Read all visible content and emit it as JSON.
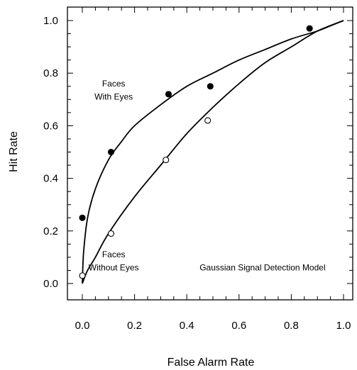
{
  "chart_data": {
    "type": "scatter",
    "xlabel": "False Alarm Rate",
    "ylabel": "Hit Rate",
    "xlim": [
      0.0,
      1.0
    ],
    "ylim": [
      0.0,
      1.0
    ],
    "x_ticks": [
      "0.0",
      "0.2",
      "0.4",
      "0.6",
      "0.8",
      "1.0"
    ],
    "y_ticks": [
      "0.0",
      "0.2",
      "0.4",
      "0.6",
      "0.8",
      "1.0"
    ],
    "grid": false,
    "series": [
      {
        "marker": "filled-circle",
        "color": "#000000",
        "points": [
          {
            "x": 0.0,
            "y": 0.25
          },
          {
            "x": 0.11,
            "y": 0.5
          },
          {
            "x": 0.33,
            "y": 0.72
          },
          {
            "x": 0.49,
            "y": 0.75
          },
          {
            "x": 0.87,
            "y": 0.97
          }
        ],
        "fit_curve": [
          {
            "x": 0.0,
            "y": 0.0
          },
          {
            "x": 0.005,
            "y": 0.12
          },
          {
            "x": 0.02,
            "y": 0.25
          },
          {
            "x": 0.05,
            "y": 0.36
          },
          {
            "x": 0.1,
            "y": 0.47
          },
          {
            "x": 0.15,
            "y": 0.54
          },
          {
            "x": 0.2,
            "y": 0.6
          },
          {
            "x": 0.3,
            "y": 0.68
          },
          {
            "x": 0.4,
            "y": 0.75
          },
          {
            "x": 0.5,
            "y": 0.8
          },
          {
            "x": 0.6,
            "y": 0.85
          },
          {
            "x": 0.7,
            "y": 0.89
          },
          {
            "x": 0.8,
            "y": 0.93
          },
          {
            "x": 0.9,
            "y": 0.96
          },
          {
            "x": 0.95,
            "y": 0.98
          },
          {
            "x": 1.0,
            "y": 1.0
          }
        ]
      },
      {
        "marker": "open-circle",
        "color": "#000000",
        "points": [
          {
            "x": 0.0,
            "y": 0.03
          },
          {
            "x": 0.11,
            "y": 0.19
          },
          {
            "x": 0.32,
            "y": 0.47
          },
          {
            "x": 0.48,
            "y": 0.62
          }
        ],
        "fit_curve": [
          {
            "x": 0.0,
            "y": 0.0
          },
          {
            "x": 0.02,
            "y": 0.05
          },
          {
            "x": 0.05,
            "y": 0.1
          },
          {
            "x": 0.1,
            "y": 0.19
          },
          {
            "x": 0.2,
            "y": 0.33
          },
          {
            "x": 0.3,
            "y": 0.45
          },
          {
            "x": 0.4,
            "y": 0.57
          },
          {
            "x": 0.5,
            "y": 0.67
          },
          {
            "x": 0.6,
            "y": 0.76
          },
          {
            "x": 0.7,
            "y": 0.84
          },
          {
            "x": 0.8,
            "y": 0.9
          },
          {
            "x": 0.9,
            "y": 0.96
          },
          {
            "x": 1.0,
            "y": 1.0
          }
        ]
      }
    ],
    "annotations": [
      {
        "text": "Faces",
        "x": 0.12,
        "y": 0.75
      },
      {
        "text": "With Eyes",
        "x": 0.12,
        "y": 0.7
      },
      {
        "text": "Faces",
        "x": 0.12,
        "y": 0.1
      },
      {
        "text": "Without Eyes",
        "x": 0.12,
        "y": 0.05
      },
      {
        "text": "Gaussian Signal Detection Model",
        "x": 0.69,
        "y": 0.05
      }
    ]
  }
}
